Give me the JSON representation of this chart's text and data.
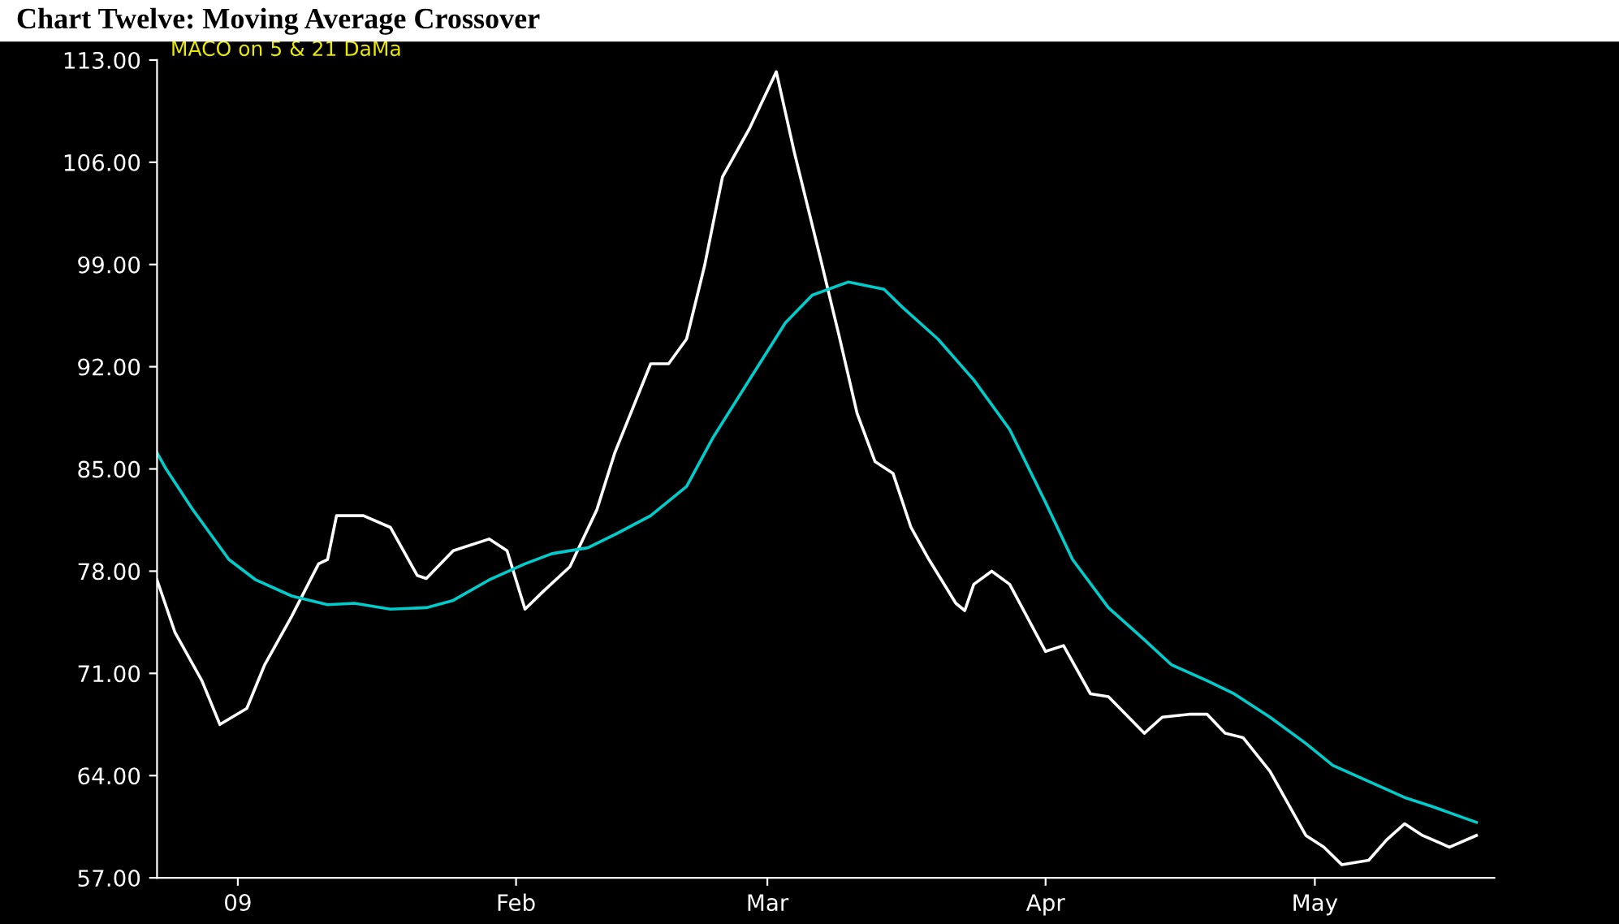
{
  "chart_data": {
    "type": "line",
    "title": "Chart Twelve: Moving Average Crossover",
    "subtitle": "MACO on 5 & 21 DaMa",
    "xlim": [
      "2008-12-23",
      "2009-05-21"
    ],
    "ylim": [
      57,
      113
    ],
    "xticks": [
      {
        "value": "2009-01-01",
        "label": "09"
      },
      {
        "value": "2009-02-01",
        "label": "Feb"
      },
      {
        "value": "2009-03-01",
        "label": "Mar"
      },
      {
        "value": "2009-04-01",
        "label": "Apr"
      },
      {
        "value": "2009-05-01",
        "label": "May"
      }
    ],
    "yticks": [
      {
        "value": 57,
        "label": "57.00"
      },
      {
        "value": 64,
        "label": "64.00"
      },
      {
        "value": 71,
        "label": "71.00"
      },
      {
        "value": 78,
        "label": "78.00"
      },
      {
        "value": 85,
        "label": "85.00"
      },
      {
        "value": 92,
        "label": "92.00"
      },
      {
        "value": 99,
        "label": "99.00"
      },
      {
        "value": 106,
        "label": "106.00"
      },
      {
        "value": 113,
        "label": "113.00"
      }
    ],
    "marker": "none",
    "line_style": "solid",
    "series": [
      {
        "color": "#ffffff",
        "x": [
          "2008-12-23",
          "2008-12-25",
          "2008-12-28",
          "2008-12-30",
          "2009-01-02",
          "2009-01-04",
          "2009-01-07",
          "2009-01-10",
          "2009-01-11",
          "2009-01-12",
          "2009-01-15",
          "2009-01-18",
          "2009-01-21",
          "2009-01-22",
          "2009-01-25",
          "2009-01-29",
          "2009-01-31",
          "2009-02-02",
          "2009-02-04",
          "2009-02-07",
          "2009-02-10",
          "2009-02-12",
          "2009-02-16",
          "2009-02-18",
          "2009-02-20",
          "2009-02-22",
          "2009-02-24",
          "2009-02-27",
          "2009-03-02",
          "2009-03-04",
          "2009-03-07",
          "2009-03-09",
          "2009-03-11",
          "2009-03-13",
          "2009-03-15",
          "2009-03-17",
          "2009-03-19",
          "2009-03-22",
          "2009-03-23",
          "2009-03-24",
          "2009-03-26",
          "2009-03-28",
          "2009-04-01",
          "2009-04-03",
          "2009-04-06",
          "2009-04-08",
          "2009-04-12",
          "2009-04-14",
          "2009-04-17",
          "2009-04-19",
          "2009-04-21",
          "2009-04-23",
          "2009-04-26",
          "2009-04-30",
          "2009-05-02",
          "2009-05-04",
          "2009-05-07",
          "2009-05-09",
          "2009-05-11",
          "2009-05-13",
          "2009-05-16",
          "2009-05-19"
        ],
        "values": [
          77.4,
          73.8,
          70.5,
          67.5,
          68.6,
          71.6,
          74.9,
          78.5,
          78.8,
          81.8,
          81.8,
          81.0,
          77.7,
          77.5,
          79.4,
          80.2,
          79.4,
          75.4,
          76.6,
          78.3,
          82.2,
          86.1,
          92.2,
          92.2,
          93.9,
          98.9,
          105.0,
          108.3,
          112.2,
          106.7,
          99.2,
          94.1,
          88.8,
          85.5,
          84.7,
          81.0,
          78.8,
          75.8,
          75.3,
          77.1,
          78.0,
          77.1,
          72.5,
          72.9,
          69.6,
          69.4,
          66.9,
          68.0,
          68.2,
          68.2,
          66.9,
          66.6,
          64.3,
          59.9,
          59.1,
          57.9,
          58.2,
          59.6,
          60.7,
          59.9,
          59.1,
          59.9
        ]
      },
      {
        "color": "#00cccc",
        "x": [
          "2008-12-23",
          "2008-12-24",
          "2008-12-27",
          "2008-12-31",
          "2009-01-03",
          "2009-01-07",
          "2009-01-11",
          "2009-01-14",
          "2009-01-18",
          "2009-01-22",
          "2009-01-25",
          "2009-01-29",
          "2009-02-02",
          "2009-02-05",
          "2009-02-09",
          "2009-02-12",
          "2009-02-16",
          "2009-02-20",
          "2009-02-23",
          "2009-02-27",
          "2009-03-03",
          "2009-03-06",
          "2009-03-10",
          "2009-03-14",
          "2009-03-16",
          "2009-03-20",
          "2009-03-24",
          "2009-03-28",
          "2009-04-01",
          "2009-04-04",
          "2009-04-08",
          "2009-04-12",
          "2009-04-15",
          "2009-04-19",
          "2009-04-22",
          "2009-04-26",
          "2009-04-30",
          "2009-05-03",
          "2009-05-07",
          "2009-05-11",
          "2009-05-14",
          "2009-05-19"
        ],
        "values": [
          86.1,
          85.0,
          82.2,
          78.8,
          77.4,
          76.3,
          75.7,
          75.8,
          75.4,
          75.5,
          76.0,
          77.4,
          78.5,
          79.2,
          79.6,
          80.5,
          81.8,
          83.8,
          87.2,
          91.1,
          95.0,
          96.9,
          97.8,
          97.3,
          96.1,
          93.9,
          91.1,
          87.7,
          82.7,
          78.8,
          75.5,
          73.3,
          71.6,
          70.5,
          69.6,
          68.0,
          66.2,
          64.7,
          63.6,
          62.5,
          61.9,
          60.8
        ]
      }
    ]
  }
}
